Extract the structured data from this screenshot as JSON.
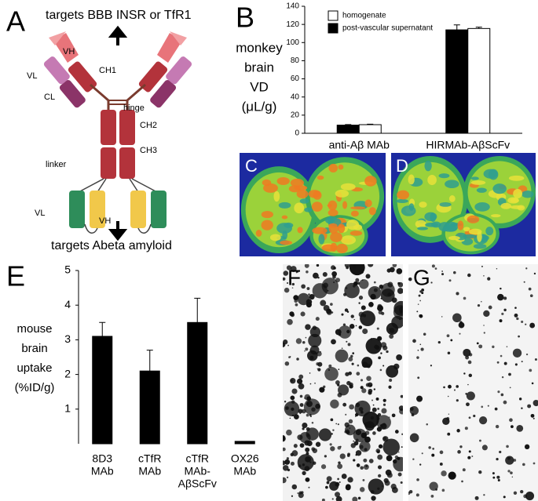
{
  "panels": {
    "a": {
      "label": "A",
      "top_text": "targets BBB INSR or TfR1",
      "bottom_text": "targets Abeta amyloid",
      "parts": {
        "vh_top": "VH",
        "vl_top": "VL",
        "cl": "CL",
        "ch1": "CH1",
        "hinge": "hinge",
        "ch2": "CH2",
        "ch3": "CH3",
        "linker": "linker",
        "vl_bottom": "VL",
        "vh_bottom": "VH"
      }
    },
    "c": {
      "label": "C"
    },
    "d": {
      "label": "D"
    },
    "f": {
      "label": "F"
    },
    "g": {
      "label": "G"
    }
  },
  "chart_data": [
    {
      "type": "bar",
      "label": "B",
      "ylabel": [
        "monkey",
        "brain",
        "VD",
        "(μL/g)"
      ],
      "categories": [
        "anti-Aβ MAb",
        "HIRMAb-AβScFv"
      ],
      "series": [
        {
          "name": "post-vascular supernatant",
          "color": "#000000",
          "values": [
            9,
            114
          ],
          "errors": [
            0.6,
            5.5
          ]
        },
        {
          "name": "homogenate",
          "color": "#ffffff",
          "values": [
            9.5,
            115.5
          ],
          "errors": [
            0.5,
            1.5
          ]
        }
      ],
      "ylim": [
        0,
        140
      ],
      "yticks": [
        0,
        20,
        40,
        60,
        80,
        100,
        120,
        140
      ],
      "legend": "top-left"
    },
    {
      "type": "bar",
      "label": "E",
      "ylabel": [
        "mouse",
        "brain",
        "uptake",
        "(%ID/g)"
      ],
      "categories": [
        [
          "8D3",
          "MAb"
        ],
        [
          "cTfR",
          "MAb"
        ],
        [
          "cTfR",
          "MAb-",
          "AβScFv"
        ],
        [
          "OX26",
          "MAb"
        ]
      ],
      "series": [
        {
          "color": "#000000",
          "values": [
            3.1,
            2.1,
            3.5,
            0.07
          ],
          "errors": [
            0.4,
            0.6,
            0.7,
            null
          ]
        }
      ],
      "ylim": [
        0,
        5
      ],
      "yticks": [
        1,
        2,
        3,
        4,
        5
      ]
    }
  ]
}
